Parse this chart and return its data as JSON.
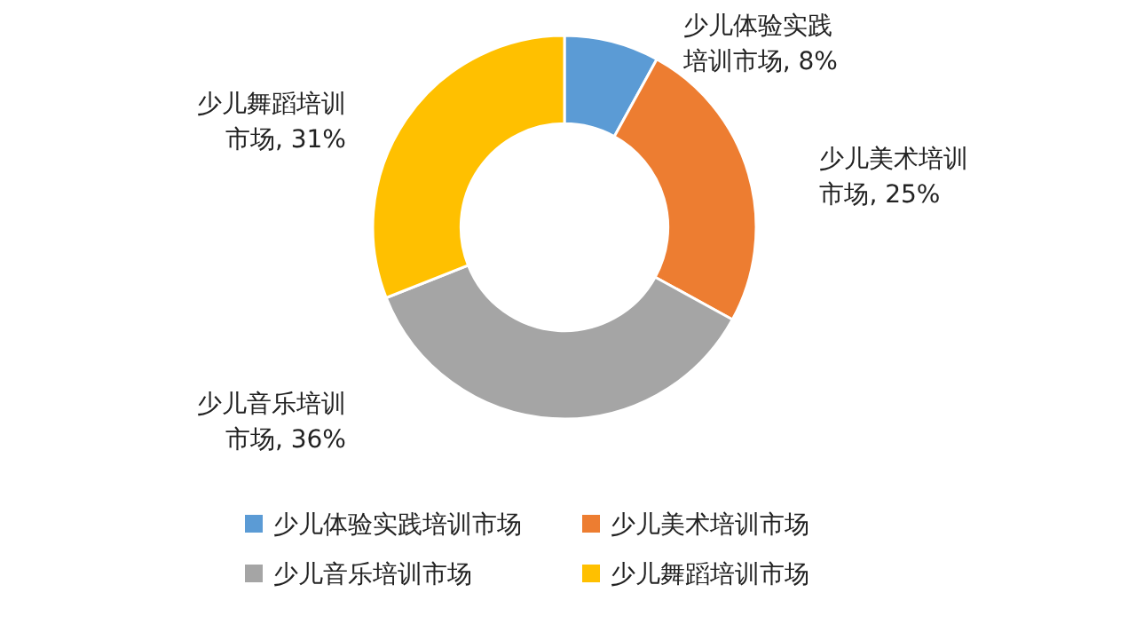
{
  "chart_data": {
    "type": "donut",
    "categories": [
      "少儿体验实践培训市场",
      "少儿美术培训市场",
      "少儿音乐培训市场",
      "少儿舞蹈培训市场"
    ],
    "values": [
      8,
      25,
      36,
      31
    ],
    "value_labels": [
      "少儿体验实践培训市场, 8%",
      "少儿美术培训市场, 25%",
      "少儿音乐培训市场, 36%",
      "少儿舞蹈培训市场, 31%"
    ],
    "colors": [
      "#5b9bd5",
      "#ed7d31",
      "#a5a5a5",
      "#ffc000"
    ],
    "legend": "bottom"
  }
}
